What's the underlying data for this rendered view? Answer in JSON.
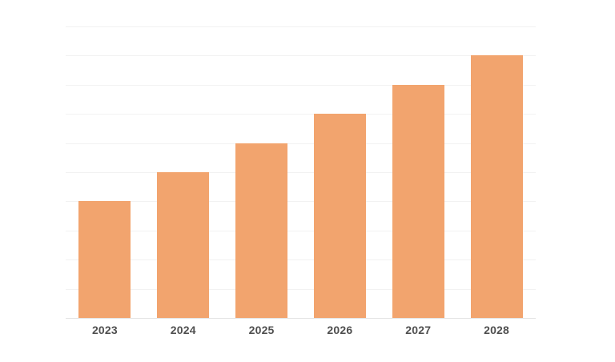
{
  "chart_data": {
    "type": "bar",
    "categories": [
      "2023",
      "2024",
      "2025",
      "2026",
      "2027",
      "2028"
    ],
    "values": [
      4,
      5,
      6,
      7,
      8,
      9
    ],
    "ylim": [
      0,
      10
    ],
    "y_gridline_step": 1,
    "grid": "on",
    "y_axis_labels_visible": false,
    "x_axis_labels_visible": true,
    "legend": "none",
    "colors": {
      "bar": "#F2A46E",
      "gridline": "#F2F2F2",
      "baseline": "#E4E4E4",
      "x_label": "#4F4F4F",
      "background": "#FFFFFF"
    }
  }
}
